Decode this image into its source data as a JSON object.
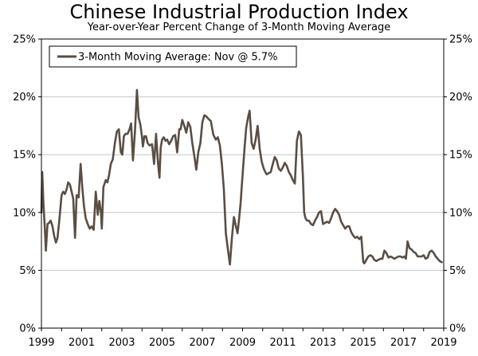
{
  "title": "Chinese Industrial Production Index",
  "subtitle": "Year-over-Year Percent Change of 3-Month Moving Average",
  "chart_data": {
    "type": "line",
    "title": "Chinese Industrial Production Index",
    "subtitle": "Year-over-Year Percent Change of 3-Month Moving Average",
    "xlabel": "",
    "ylabel": "",
    "xlim": [
      1999,
      2019
    ],
    "ylim": [
      0,
      25
    ],
    "x_ticks": [
      "1999",
      "2001",
      "2003",
      "2005",
      "2007",
      "2009",
      "2011",
      "2013",
      "2015",
      "2017",
      "2019"
    ],
    "y_ticks_left": [
      "0%",
      "5%",
      "10%",
      "15%",
      "20%",
      "25%"
    ],
    "y_ticks_right": [
      "0%",
      "5%",
      "10%",
      "15%",
      "20%",
      "25%"
    ],
    "grid": true,
    "legend_position": "top-left",
    "colors": {
      "series": "#5a4e44",
      "grid": "#c8c8c8",
      "axis": "#000000"
    },
    "series": [
      {
        "name": "3-Month Moving Average: Nov @ 5.7%",
        "x": [
          1999.0,
          1999.04,
          1999.1,
          1999.16,
          1999.22,
          1999.3,
          1999.38,
          1999.46,
          1999.55,
          1999.63,
          1999.72,
          1999.8,
          1999.9,
          2000.0,
          2000.08,
          2000.17,
          2000.25,
          2000.33,
          2000.42,
          2000.5,
          2000.58,
          2000.67,
          2000.75,
          2000.85,
          2000.95,
          2001.04,
          2001.12,
          2001.2,
          2001.3,
          2001.4,
          2001.5,
          2001.6,
          2001.7,
          2001.8,
          2001.88,
          2001.96,
          2002.0,
          2002.08,
          2002.14,
          2002.2,
          2002.28,
          2002.36,
          2002.45,
          2002.55,
          2002.65,
          2002.75,
          2002.85,
          2002.95,
          2003.02,
          2003.1,
          2003.18,
          2003.28,
          2003.38,
          2003.46,
          2003.55,
          2003.65,
          2003.75,
          2003.83,
          2003.92,
          2004.0,
          2004.04,
          2004.12,
          2004.2,
          2004.28,
          2004.38,
          2004.5,
          2004.6,
          2004.7,
          2004.8,
          2004.87,
          2004.93,
          2005.0,
          2005.08,
          2005.17,
          2005.25,
          2005.35,
          2005.45,
          2005.55,
          2005.65,
          2005.75,
          2005.85,
          2005.92,
          2006.0,
          2006.1,
          2006.2,
          2006.3,
          2006.4,
          2006.5,
          2006.6,
          2006.7,
          2006.8,
          2006.9,
          2007.0,
          2007.1,
          2007.2,
          2007.3,
          2007.42,
          2007.55,
          2007.67,
          2007.77,
          2007.87,
          2007.97,
          2008.07,
          2008.17,
          2008.27,
          2008.37,
          2008.47,
          2008.57,
          2008.67,
          2008.75,
          2008.83,
          2008.9,
          2008.97,
          2009.03,
          2009.1,
          2009.18,
          2009.27,
          2009.35,
          2009.45,
          2009.55,
          2009.65,
          2009.75,
          2009.85,
          2009.95,
          2010.05,
          2010.13,
          2010.2,
          2010.3,
          2010.4,
          2010.5,
          2010.6,
          2010.7,
          2010.8,
          2010.9,
          2011.0,
          2011.1,
          2011.2,
          2011.3,
          2011.4,
          2011.5,
          2011.6,
          2011.7,
          2011.8,
          2011.9,
          2012.0,
          2012.06,
          2012.13,
          2012.2,
          2012.3,
          2012.4,
          2012.5,
          2012.6,
          2012.7,
          2012.8,
          2012.9,
          2013.0,
          2013.1,
          2013.2,
          2013.3,
          2013.4,
          2013.5,
          2013.6,
          2013.7,
          2013.8,
          2013.9,
          2014.0,
          2014.1,
          2014.2,
          2014.3,
          2014.4,
          2014.5,
          2014.6,
          2014.7,
          2014.8,
          2014.9,
          2015.0,
          2015.05,
          2015.15,
          2015.25,
          2015.35,
          2015.45,
          2015.55,
          2015.65,
          2015.75,
          2015.85,
          2015.95,
          2016.05,
          2016.15,
          2016.25,
          2016.35,
          2016.45,
          2016.55,
          2016.65,
          2016.75,
          2016.85,
          2016.95,
          2017.05,
          2017.12,
          2017.2,
          2017.3,
          2017.4,
          2017.5,
          2017.6,
          2017.7,
          2017.8,
          2017.9,
          2018.0,
          2018.1,
          2018.2,
          2018.3,
          2018.4,
          2018.5,
          2018.6,
          2018.7,
          2018.8,
          2018.9
        ],
        "values": [
          10.0,
          13.5,
          10.8,
          9.0,
          6.7,
          9.0,
          9.1,
          9.3,
          8.8,
          8.0,
          7.4,
          7.8,
          9.5,
          11.5,
          11.8,
          11.6,
          12.0,
          12.6,
          12.4,
          11.8,
          11.2,
          7.8,
          11.5,
          11.3,
          14.2,
          12.0,
          10.5,
          9.5,
          9.0,
          8.6,
          8.8,
          8.5,
          11.8,
          9.8,
          11.0,
          10.0,
          8.6,
          12.2,
          12.5,
          12.8,
          12.6,
          13.2,
          14.2,
          14.6,
          16.0,
          17.0,
          17.2,
          15.2,
          15.0,
          16.6,
          16.8,
          16.8,
          17.2,
          17.7,
          14.5,
          17.0,
          20.6,
          18.2,
          17.6,
          16.5,
          15.7,
          16.6,
          16.6,
          16.0,
          15.8,
          15.9,
          14.2,
          16.8,
          14.2,
          13.0,
          15.6,
          16.3,
          16.5,
          16.2,
          16.3,
          15.9,
          16.2,
          16.6,
          16.7,
          15.2,
          17.2,
          17.2,
          18.0,
          17.5,
          16.9,
          17.8,
          17.4,
          16.0,
          14.9,
          13.7,
          15.2,
          16.0,
          17.8,
          18.4,
          18.3,
          18.1,
          17.9,
          16.7,
          16.3,
          16.5,
          15.8,
          14.2,
          12.0,
          8.2,
          6.8,
          5.5,
          7.8,
          9.6,
          8.8,
          8.2,
          9.5,
          10.8,
          12.5,
          14.0,
          15.6,
          17.3,
          18.2,
          18.8,
          16.0,
          15.5,
          16.3,
          17.5,
          15.5,
          14.4,
          13.8,
          13.5,
          13.3,
          13.4,
          13.5,
          14.2,
          14.8,
          14.5,
          13.8,
          13.6,
          13.9,
          14.3,
          14.0,
          13.5,
          13.2,
          12.8,
          12.5,
          16.2,
          17.0,
          16.7,
          13.0,
          10.0,
          9.5,
          9.3,
          9.3,
          9.0,
          8.9,
          9.3,
          9.6,
          10.0,
          10.1,
          9.0,
          9.1,
          9.2,
          9.1,
          9.5,
          10.0,
          10.3,
          10.1,
          9.8,
          9.2,
          8.9,
          8.6,
          8.8,
          8.8,
          8.3,
          8.0,
          7.8,
          7.9,
          7.7,
          7.9,
          5.7,
          5.6,
          5.9,
          6.2,
          6.3,
          6.2,
          5.9,
          5.8,
          5.9,
          6.0,
          6.0,
          6.7,
          6.5,
          6.1,
          6.2,
          6.1,
          6.0,
          6.1,
          6.2,
          6.2,
          6.1,
          6.2,
          6.0,
          7.5,
          6.9,
          6.8,
          6.6,
          6.5,
          6.2,
          6.2,
          6.2,
          6.3,
          6.0,
          6.1,
          6.6,
          6.7,
          6.5,
          6.2,
          6.0,
          5.8,
          5.7
        ]
      }
    ]
  }
}
